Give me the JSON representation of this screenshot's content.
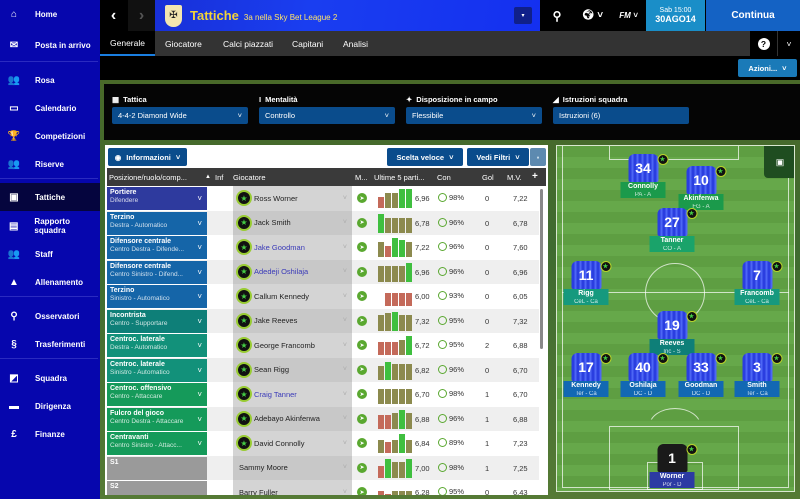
{
  "sidebar": {
    "items": [
      {
        "label": "Home",
        "icon": "home-icon",
        "glyph": "⌂"
      },
      {
        "label": "Posta in arrivo",
        "icon": "inbox-icon",
        "glyph": "✉"
      },
      {
        "label": "Rosa",
        "icon": "squad-icon",
        "glyph": "👥"
      },
      {
        "label": "Calendario",
        "icon": "calendar-icon",
        "glyph": "▭"
      },
      {
        "label": "Competizioni",
        "icon": "trophy-icon",
        "glyph": "🏆"
      },
      {
        "label": "Riserve",
        "icon": "reserves-icon",
        "glyph": "👥"
      },
      {
        "label": "Tattiche",
        "icon": "tactics-icon",
        "glyph": "▣",
        "active": true
      },
      {
        "label": "Rapporto squadra",
        "icon": "report-icon",
        "glyph": "▤"
      },
      {
        "label": "Staff",
        "icon": "staff-icon",
        "glyph": "👥"
      },
      {
        "label": "Allenamento",
        "icon": "training-cone-icon",
        "glyph": "▲"
      },
      {
        "label": "Osservatori",
        "icon": "search-icon",
        "glyph": "⚲"
      },
      {
        "label": "Trasferimenti",
        "icon": "transfers-icon",
        "glyph": "§"
      },
      {
        "label": "Squadra",
        "icon": "club-crest-icon",
        "glyph": "◩"
      },
      {
        "label": "Dirigenza",
        "icon": "briefcase-icon",
        "glyph": "▬"
      },
      {
        "label": "Finanze",
        "icon": "finance-icon",
        "glyph": "£"
      }
    ]
  },
  "header": {
    "title": "Tattiche",
    "subtitle": "3a nella Sky Bet League 2",
    "date_day": "Sab 15:00",
    "date": "30AGO14",
    "continue_label": "Continua",
    "fm_label": "FM"
  },
  "tabs": [
    {
      "label": "Generale",
      "active": true
    },
    {
      "label": "Giocatore"
    },
    {
      "label": "Calci piazzati"
    },
    {
      "label": "Capitani"
    },
    {
      "label": "Analisi"
    }
  ],
  "actions_label": "Azioni...",
  "tactic": {
    "tattica": {
      "label": "Tattica",
      "value": "4-4-2 Diamond Wide"
    },
    "mentalita": {
      "label": "Mentalità",
      "value": "Controllo"
    },
    "disposizione": {
      "label": "Disposizione in campo",
      "value": "Flessibile"
    },
    "istruzioni": {
      "label": "Istruzioni squadra",
      "value": "Istruzioni (6)"
    }
  },
  "table": {
    "info_label": "Informazioni",
    "quick_pick_label": "Scelta veloce",
    "filters_label": "Vedi Filtri",
    "columns": {
      "pos": "Posizione/ruolo/comp...",
      "inf": "Inf",
      "player": "Giocatore",
      "m": "M...",
      "last5": "Ultime 5 parti...",
      "con": "Con",
      "gol": "Gol",
      "mv": "M.V.",
      "add": "+"
    },
    "colors": {
      "gk": "#2e3a9e",
      "def": "#1565a8",
      "dm": "#0e7f78",
      "mid": "#12917a",
      "att": "#159a5a",
      "sub": "#9a9a9a",
      "bar_green": "#3fbf3f",
      "bar_olive": "#8c8a4e",
      "bar_red": "#c46a5a"
    },
    "rows": [
      {
        "pos": "Portiere",
        "role": "Difendere",
        "group": "gk",
        "player": "Ross Worner",
        "link": false,
        "badge": true,
        "rating": "6,96",
        "con": "98%",
        "gol": "0",
        "mv": "7,22",
        "form": [
          [
            "r",
            0.6
          ],
          [
            "o",
            0.8
          ],
          [
            "o",
            0.8
          ],
          [
            "g",
            1
          ],
          [
            "g",
            1
          ]
        ]
      },
      {
        "pos": "Terzino",
        "role": "Destra - Automatico",
        "group": "def",
        "player": "Jack Smith",
        "link": false,
        "badge": true,
        "rating": "6,78",
        "con": "96%",
        "gol": "0",
        "mv": "6,78",
        "form": [
          [
            "g",
            1
          ],
          [
            "o",
            0.75
          ],
          [
            "o",
            0.75
          ],
          [
            "o",
            0.75
          ],
          [
            "o",
            0.75
          ]
        ]
      },
      {
        "pos": "Difensore centrale",
        "role": "Centro Destra - Difende...",
        "group": "def",
        "player": "Jake Goodman",
        "link": true,
        "badge": true,
        "rating": "7,22",
        "con": "96%",
        "gol": "0",
        "mv": "7,60",
        "form": [
          [
            "o",
            0.8
          ],
          [
            "r",
            0.6
          ],
          [
            "g",
            1
          ],
          [
            "g",
            0.9
          ],
          [
            "o",
            0.8
          ]
        ]
      },
      {
        "pos": "Difensore centrale",
        "role": "Centro Sinistro - Difend...",
        "group": "def",
        "player": "Adedeji Oshilaja",
        "link": true,
        "badge": true,
        "rating": "6,96",
        "con": "96%",
        "gol": "0",
        "mv": "6,96",
        "form": [
          [
            "o",
            0.8
          ],
          [
            "o",
            0.8
          ],
          [
            "o",
            0.8
          ],
          [
            "o",
            0.8
          ],
          [
            "g",
            1
          ]
        ]
      },
      {
        "pos": "Terzino",
        "role": "Sinistro - Automatico",
        "group": "def",
        "player": "Callum Kennedy",
        "link": false,
        "badge": true,
        "rating": "6,00",
        "con": "93%",
        "gol": "0",
        "mv": "6,05",
        "form": [
          [
            "r",
            0
          ],
          [
            "r",
            0.7
          ],
          [
            "r",
            0.7
          ],
          [
            "r",
            0.7
          ],
          [
            "r",
            0.7
          ]
        ]
      },
      {
        "pos": "Incontrista",
        "role": "Centro - Supportare",
        "group": "dm",
        "player": "Jake Reeves",
        "link": false,
        "badge": true,
        "rating": "7,32",
        "con": "95%",
        "gol": "0",
        "mv": "7,32",
        "form": [
          [
            "o",
            0.8
          ],
          [
            "o",
            0.9
          ],
          [
            "g",
            1
          ],
          [
            "o",
            0.8
          ],
          [
            "o",
            0.8
          ]
        ]
      },
      {
        "pos": "Centroc. laterale",
        "role": "Destra - Automatico",
        "group": "mid",
        "player": "George Francomb",
        "link": false,
        "badge": true,
        "rating": "6,72",
        "con": "95%",
        "gol": "2",
        "mv": "6,88",
        "form": [
          [
            "r",
            0.7
          ],
          [
            "r",
            0.7
          ],
          [
            "r",
            0.7
          ],
          [
            "o",
            0.8
          ],
          [
            "g",
            1
          ]
        ]
      },
      {
        "pos": "Centroc. laterale",
        "role": "Sinistro - Automatico",
        "group": "mid",
        "player": "Sean Rigg",
        "link": false,
        "badge": true,
        "rating": "6,82",
        "con": "96%",
        "gol": "0",
        "mv": "6,70",
        "form": [
          [
            "o",
            0.7
          ],
          [
            "g",
            0.9
          ],
          [
            "o",
            0.8
          ],
          [
            "o",
            0.8
          ],
          [
            "o",
            0.8
          ]
        ]
      },
      {
        "pos": "Centroc. offensivo",
        "role": "Centro - Attaccare",
        "group": "att",
        "player": "Craig Tanner",
        "link": true,
        "badge": true,
        "rating": "6,70",
        "con": "98%",
        "gol": "1",
        "mv": "6,70",
        "form": [
          [
            "o",
            0.8
          ],
          [
            "o",
            0.8
          ],
          [
            "o",
            0.8
          ],
          [
            "o",
            0.8
          ],
          [
            "o",
            0.8
          ]
        ]
      },
      {
        "pos": "Fulcro del gioco",
        "role": "Centro Destra - Attaccare",
        "group": "att",
        "player": "Adebayo Akinfenwa",
        "link": false,
        "badge": true,
        "rating": "6,88",
        "con": "96%",
        "gol": "1",
        "mv": "6,88",
        "form": [
          [
            "r",
            0.7
          ],
          [
            "r",
            0.7
          ],
          [
            "o",
            0.8
          ],
          [
            "g",
            1
          ],
          [
            "o",
            0.8
          ]
        ]
      },
      {
        "pos": "Centravanti",
        "role": "Centro Sinistro - Attacc...",
        "group": "att",
        "player": "David Connolly",
        "link": false,
        "badge": true,
        "rating": "6,84",
        "con": "89%",
        "gol": "1",
        "mv": "7,23",
        "form": [
          [
            "o",
            0.7
          ],
          [
            "r",
            0.6
          ],
          [
            "o",
            0.7
          ],
          [
            "g",
            1
          ],
          [
            "o",
            0.7
          ]
        ]
      },
      {
        "pos": "S1",
        "role": "",
        "group": "sub",
        "player": "Sammy Moore",
        "link": false,
        "badge": false,
        "rating": "7,00",
        "con": "98%",
        "gol": "1",
        "mv": "7,25",
        "form": [
          [
            "r",
            0.6
          ],
          [
            "g",
            1
          ],
          [
            "o",
            0.8
          ],
          [
            "o",
            0.8
          ],
          [
            "g",
            1
          ]
        ]
      },
      {
        "pos": "S2",
        "role": "",
        "group": "sub",
        "player": "Barry Fuller",
        "link": false,
        "badge": false,
        "rating": "6,28",
        "con": "95%",
        "gol": "0",
        "mv": "6,43",
        "form": [
          [
            "r",
            0.6
          ],
          [
            "r",
            0.4
          ],
          [
            "o",
            0.6
          ],
          [
            "o",
            0.6
          ],
          [
            "o",
            0.6
          ]
        ]
      }
    ]
  },
  "pitch": {
    "players": [
      {
        "name": "Connolly",
        "num": "34",
        "role": "PA - A",
        "color": "#1b9a4b"
      },
      {
        "name": "Akinfenwa",
        "num": "10",
        "role": "FG - A",
        "color": "#1b9a4b"
      },
      {
        "name": "Tanner",
        "num": "27",
        "role": "CO - A",
        "color": "#1aa36a"
      },
      {
        "name": "Rigg",
        "num": "11",
        "role": "CeL - Ca",
        "color": "#16997e"
      },
      {
        "name": "Francomb",
        "num": "7",
        "role": "CeL - Ca",
        "color": "#16997e"
      },
      {
        "name": "Reeves",
        "num": "19",
        "role": "Inc - S",
        "color": "#0e7f78"
      },
      {
        "name": "Kennedy",
        "num": "17",
        "role": "Ter - Ca",
        "color": "#1268b3"
      },
      {
        "name": "Oshilaja",
        "num": "40",
        "role": "DC - D",
        "color": "#1268b3"
      },
      {
        "name": "Goodman",
        "num": "33",
        "role": "DC - D",
        "color": "#1268b3"
      },
      {
        "name": "Smith",
        "num": "3",
        "role": "Ter - Ca",
        "color": "#1268b3"
      },
      {
        "name": "Worner",
        "num": "1",
        "role": "Por - D",
        "color": "#2c3aa3",
        "gk": true
      }
    ]
  }
}
